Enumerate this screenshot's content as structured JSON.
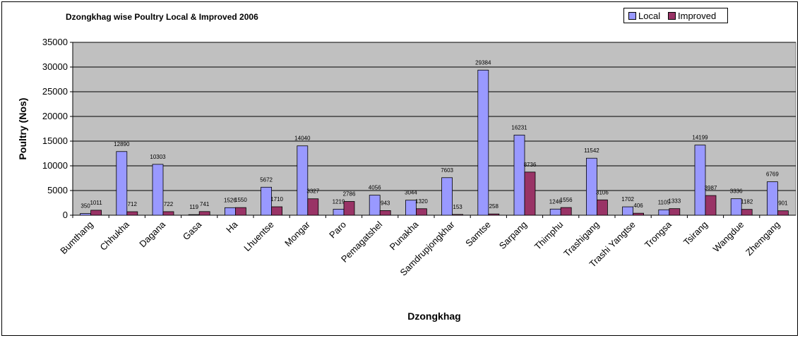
{
  "chart_data": {
    "type": "bar",
    "title": "Dzongkhag wise Poultry Local & Improved 2006",
    "xlabel": "Dzongkhag",
    "ylabel": "Poultry (Nos)",
    "ylim": [
      0,
      35000
    ],
    "yticks": [
      "0",
      "5000",
      "10000",
      "15000",
      "20000",
      "25000",
      "30000",
      "35000"
    ],
    "grid": true,
    "legend_position": "top-right",
    "plot_background": "#c0c0c0",
    "categories": [
      "Bumthang",
      "Chhukha",
      "Dagana",
      "Gasa",
      "Ha",
      "Lhuentse",
      "Mongar",
      "Paro",
      "Pemagatshel",
      "Punakha",
      "Samdrupjongkhar",
      "Samtse",
      "Sarpang",
      "Thimphu",
      "Trashigang",
      "Trashi Yangtse",
      "Trongsa",
      "Tsirang",
      "Wangdue",
      "Zhemgang"
    ],
    "series": [
      {
        "name": "Local",
        "color": "#9999ff",
        "values": [
          350,
          12890,
          10303,
          119,
          1526,
          5672,
          14040,
          1219,
          4056,
          3044,
          7603,
          29384,
          16231,
          1246,
          11542,
          1702,
          1105,
          14199,
          3336,
          6769
        ],
        "labels": [
          "350",
          "12890",
          "10303",
          "119",
          "1526",
          "5672",
          "14040",
          "1219",
          "4056",
          "3044",
          "7603",
          "29384",
          "16231",
          "1246",
          "11542",
          "1702",
          "1105",
          "14199",
          "3336",
          "6769"
        ]
      },
      {
        "name": "Improved",
        "color": "#993366",
        "values": [
          1011,
          712,
          722,
          741,
          1550,
          1710,
          3327,
          2786,
          943,
          1320,
          153,
          258,
          8736,
          1556,
          3106,
          406,
          1333,
          3987,
          1182,
          901
        ],
        "labels": [
          "1011",
          "712",
          "722",
          "741",
          "1550",
          "1710",
          "3327",
          "2786",
          "943",
          "1320",
          "153",
          "258",
          "8736",
          "1556",
          "3106",
          "406",
          "1333",
          "3987",
          "1182",
          "901"
        ]
      }
    ]
  }
}
